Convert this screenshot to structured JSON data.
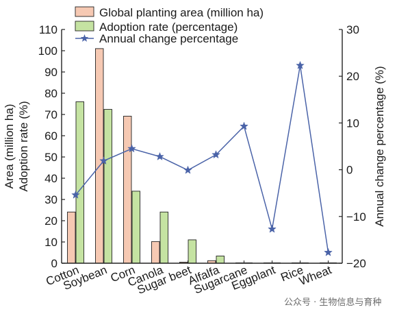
{
  "chart_data": {
    "type": "bar",
    "categories": [
      "Cotton",
      "Soybean",
      "Corn",
      "Canola",
      "Sugar beet",
      "Alfalfa",
      "Sugarcane",
      "Eggplant",
      "Rice",
      "Wheat"
    ],
    "series": [
      {
        "name": "Global planting area (million ha)",
        "kind": "bar",
        "axis": "left",
        "color": "#f6c9b3",
        "values": [
          24.1,
          101,
          69.2,
          10.2,
          0.5,
          1.2,
          0.01,
          0.005,
          0.0,
          0.0
        ]
      },
      {
        "name": "Adoption rate (percentage)",
        "kind": "bar",
        "axis": "left",
        "color": "#c5e3a2",
        "values": [
          76,
          72.4,
          33.9,
          24.1,
          11,
          3.4,
          0.1,
          0.05,
          0.0,
          0.0
        ]
      },
      {
        "name": "Annual change percentage",
        "kind": "line",
        "axis": "right",
        "color": "#4a63a8",
        "marker": "star",
        "values": [
          -5.4,
          1.9,
          4.5,
          2.8,
          -0.1,
          3.2,
          9.3,
          -12.7,
          22.3,
          -17.7
        ]
      }
    ],
    "y_left": {
      "label_line1": "Area (million ha)",
      "label_line2": "Adoption rate (%)",
      "lim": [
        0,
        110
      ],
      "ticks": [
        "0",
        "10",
        "20",
        "30",
        "40",
        "50",
        "60",
        "70",
        "80",
        "90",
        "100",
        "110"
      ]
    },
    "y_right": {
      "label": "Annual change percentage (%)",
      "lim": [
        -20,
        30
      ],
      "ticks": [
        "−20",
        "−10",
        "0",
        "10",
        "20",
        "30"
      ]
    },
    "legend_position": "top-left",
    "grid": false
  },
  "watermark": "公众号 · 生物信息与育种"
}
